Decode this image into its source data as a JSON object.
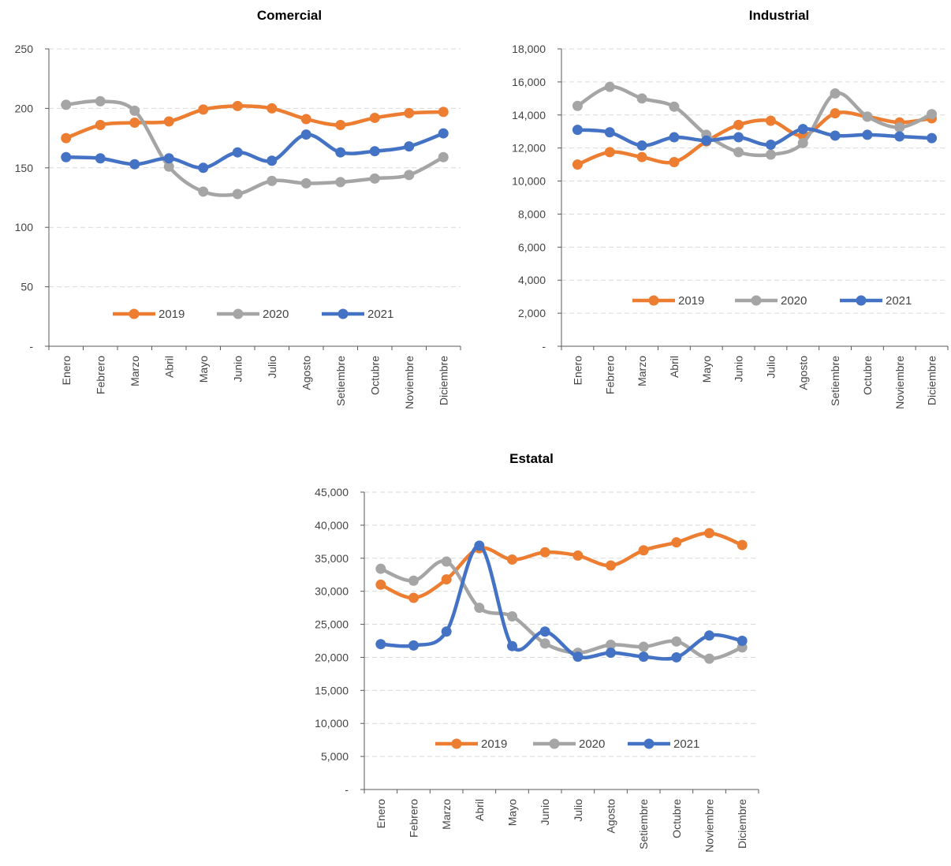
{
  "colors": {
    "2019": "#ED7D31",
    "2020": "#A5A5A5",
    "2021": "#4472C4",
    "grid": "#D9D9D9",
    "axis": "#595959"
  },
  "chart_data": [
    {
      "type": "line",
      "title": "Comercial",
      "categories": [
        "Enero",
        "Febrero",
        "Marzo",
        "Abril",
        "Mayo",
        "Junio",
        "Julio",
        "Agosto",
        "Setiembre",
        "Octubre",
        "Noviembre",
        "Diciembre"
      ],
      "ylim": [
        0,
        250
      ],
      "yticks": [
        0,
        50,
        100,
        150,
        200,
        250
      ],
      "ytick_labels": [
        "-",
        "50",
        "100",
        "150",
        "200",
        "250"
      ],
      "grid": true,
      "legend": "inside-bottom",
      "series": [
        {
          "name": "2019",
          "values": [
            175,
            186,
            188,
            189,
            199,
            202,
            200,
            191,
            186,
            192,
            196,
            197
          ]
        },
        {
          "name": "2020",
          "values": [
            203,
            206,
            198,
            151,
            130,
            128,
            139,
            137,
            138,
            141,
            144,
            159
          ]
        },
        {
          "name": "2021",
          "values": [
            159,
            158,
            153,
            158,
            150,
            163,
            156,
            178,
            163,
            164,
            168,
            179
          ]
        }
      ]
    },
    {
      "type": "line",
      "title": "Industrial",
      "categories": [
        "Enero",
        "Febrero",
        "Marzo",
        "Abril",
        "Mayo",
        "Junio",
        "Julio",
        "Agosto",
        "Setiembre",
        "Octubre",
        "Noviembre",
        "Diciembre"
      ],
      "ylim": [
        0,
        18000
      ],
      "yticks": [
        0,
        2000,
        4000,
        6000,
        8000,
        10000,
        12000,
        14000,
        16000,
        18000
      ],
      "ytick_labels": [
        "-",
        "2,000",
        "4,000",
        "6,000",
        "8,000",
        "10,000",
        "12,000",
        "14,000",
        "16,000",
        "18,000"
      ],
      "grid": true,
      "legend": "inside-bottom",
      "series": [
        {
          "name": "2019",
          "values": [
            11000,
            11750,
            11450,
            11150,
            12400,
            13400,
            13650,
            12750,
            14100,
            13900,
            13550,
            13800
          ]
        },
        {
          "name": "2020",
          "values": [
            14550,
            15700,
            15000,
            14500,
            12800,
            11750,
            11600,
            12300,
            15300,
            13900,
            13250,
            14050
          ]
        },
        {
          "name": "2021",
          "values": [
            13100,
            12950,
            12150,
            12650,
            12450,
            12650,
            12200,
            13150,
            12750,
            12800,
            12700,
            12600
          ]
        }
      ]
    },
    {
      "type": "line",
      "title": "Estatal",
      "categories": [
        "Enero",
        "Febrero",
        "Marzo",
        "Abril",
        "Mayo",
        "Junio",
        "Julio",
        "Agosto",
        "Setiembre",
        "Octubre",
        "Noviembre",
        "Diciembre"
      ],
      "ylim": [
        0,
        45000
      ],
      "yticks": [
        0,
        5000,
        10000,
        15000,
        20000,
        25000,
        30000,
        35000,
        40000,
        45000
      ],
      "ytick_labels": [
        "-",
        "5,000",
        "10,000",
        "15,000",
        "20,000",
        "25,000",
        "30,000",
        "35,000",
        "40,000",
        "45,000"
      ],
      "grid": true,
      "legend": "inside-bottom",
      "series": [
        {
          "name": "2019",
          "values": [
            31000,
            29000,
            31800,
            36500,
            34800,
            35900,
            35400,
            33900,
            36200,
            37400,
            38800,
            37000
          ]
        },
        {
          "name": "2020",
          "values": [
            33400,
            31600,
            34500,
            27500,
            26200,
            22100,
            20700,
            21900,
            21600,
            22400,
            19800,
            21500
          ]
        },
        {
          "name": "2021",
          "values": [
            22000,
            21800,
            23900,
            36900,
            21700,
            23900,
            20100,
            20700,
            20100,
            20000,
            23300,
            22500
          ]
        }
      ]
    }
  ]
}
